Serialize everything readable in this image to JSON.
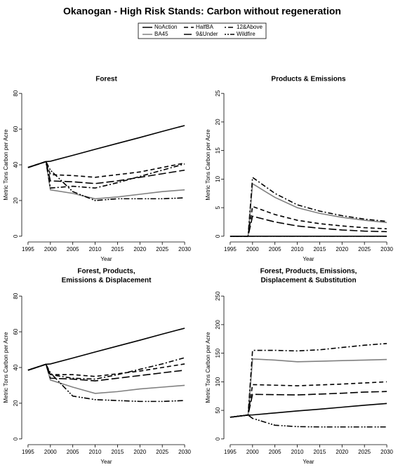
{
  "title": "Okanogan  - High Risk Stands: Carbon without regeneration",
  "chart_data": [
    {
      "type": "line",
      "title": [
        "Forest"
      ],
      "xlabel": "Year",
      "ylabel": "Metric Tons Carbon per Acre",
      "x": [
        1995,
        1999,
        2000,
        2005,
        2010,
        2015,
        2020,
        2025,
        2030
      ],
      "xlim": [
        1993.6,
        2031.4
      ],
      "xticks": [
        1995,
        2000,
        2005,
        2010,
        2015,
        2020,
        2025,
        2030
      ],
      "ylim": [
        -3.2,
        83.2
      ],
      "yticks": [
        0,
        20,
        40,
        60,
        80
      ],
      "series": [
        {
          "name": "NoAction",
          "color": "#000000",
          "linestyle": "solid",
          "values": [
            38.5,
            41.8,
            42,
            45.3,
            48.7,
            52,
            55.3,
            58.7,
            62
          ]
        },
        {
          "name": "BA45",
          "color": "#808080",
          "linestyle": "solid",
          "values": [
            38.5,
            41.8,
            26,
            24,
            21,
            22,
            23.5,
            25,
            26
          ]
        },
        {
          "name": "HalfBA",
          "color": "#000000",
          "linestyle": "dashed",
          "values": [
            38.5,
            41.8,
            34.5,
            34,
            33,
            34.5,
            36,
            38.5,
            41
          ]
        },
        {
          "name": "9&Under",
          "color": "#000000",
          "linestyle": "longdash",
          "values": [
            38.5,
            41.8,
            31,
            30.5,
            29.5,
            31,
            33,
            35,
            37
          ]
        },
        {
          "name": "12&Above",
          "color": "#000000",
          "linestyle": "dotdash",
          "values": [
            38.5,
            41.8,
            27,
            28,
            27,
            30,
            33.5,
            37,
            40.5
          ]
        },
        {
          "name": "Wildfire",
          "color": "#000000",
          "linestyle": "twodash",
          "values": [
            38.5,
            41.8,
            37,
            25,
            20,
            21,
            21,
            21,
            21.5
          ]
        }
      ]
    },
    {
      "type": "line",
      "title": [
        "Products & Emissions"
      ],
      "xlabel": "Year",
      "ylabel": "Metric Tons Carbon per Acre",
      "x": [
        1995,
        1999,
        2000,
        2005,
        2010,
        2015,
        2020,
        2025,
        2030
      ],
      "xlim": [
        1993.6,
        2031.4
      ],
      "xticks": [
        1995,
        2000,
        2005,
        2010,
        2015,
        2020,
        2025,
        2030
      ],
      "ylim": [
        -1,
        26
      ],
      "yticks": [
        0,
        5,
        10,
        15,
        20,
        25
      ],
      "series": [
        {
          "name": "NoAction",
          "color": "#000000",
          "linestyle": "solid",
          "values": [
            0,
            0,
            0,
            0,
            0,
            0,
            0,
            0,
            0
          ]
        },
        {
          "name": "BA45",
          "color": "#808080",
          "linestyle": "solid",
          "values": [
            0,
            0,
            9.2,
            6.8,
            5,
            4,
            3.3,
            2.8,
            2.4
          ]
        },
        {
          "name": "HalfBA",
          "color": "#000000",
          "linestyle": "dashed",
          "values": [
            0,
            0,
            5.2,
            3.8,
            2.8,
            2.2,
            1.8,
            1.5,
            1.3
          ]
        },
        {
          "name": "9&Under",
          "color": "#000000",
          "linestyle": "longdash",
          "values": [
            0,
            0,
            3.5,
            2.5,
            1.8,
            1.4,
            1.1,
            0.9,
            0.8
          ]
        },
        {
          "name": "12&Above",
          "color": "#000000",
          "linestyle": "dotdash",
          "values": [
            0,
            0,
            10.3,
            7.5,
            5.5,
            4.4,
            3.6,
            3,
            2.6
          ]
        },
        {
          "name": "Wildfire",
          "color": "#000000",
          "linestyle": "twodash",
          "values": [
            0,
            0,
            0,
            0,
            0,
            0,
            0,
            0,
            0
          ]
        }
      ]
    },
    {
      "type": "line",
      "title": [
        "Forest, Products,",
        "Emissions & Displacement"
      ],
      "xlabel": "Year",
      "ylabel": "Metric Tons Carbon per Acre",
      "x": [
        1995,
        1999,
        2000,
        2005,
        2010,
        2015,
        2020,
        2025,
        2030
      ],
      "xlim": [
        1993.6,
        2031.4
      ],
      "xticks": [
        1995,
        2000,
        2005,
        2010,
        2015,
        2020,
        2025,
        2030
      ],
      "ylim": [
        -3.2,
        83.2
      ],
      "yticks": [
        0,
        20,
        40,
        60,
        80
      ],
      "series": [
        {
          "name": "NoAction",
          "color": "#000000",
          "linestyle": "solid",
          "values": [
            38.5,
            41.8,
            42,
            45.3,
            48.7,
            52,
            55.3,
            58.7,
            62
          ]
        },
        {
          "name": "BA45",
          "color": "#808080",
          "linestyle": "solid",
          "values": [
            38.5,
            41.8,
            33,
            29,
            25.5,
            26.5,
            28,
            29,
            30
          ]
        },
        {
          "name": "HalfBA",
          "color": "#000000",
          "linestyle": "dashed",
          "values": [
            38.5,
            41.8,
            36,
            36,
            35,
            36.5,
            38,
            40,
            42
          ]
        },
        {
          "name": "9&Under",
          "color": "#000000",
          "linestyle": "longdash",
          "values": [
            38.5,
            41.8,
            34,
            33.5,
            32.5,
            34,
            35.5,
            37,
            38.5
          ]
        },
        {
          "name": "12&Above",
          "color": "#000000",
          "linestyle": "dotdash",
          "values": [
            38.5,
            41.8,
            36,
            34,
            33.5,
            36,
            39,
            42,
            45.5
          ]
        },
        {
          "name": "Wildfire",
          "color": "#000000",
          "linestyle": "twodash",
          "values": [
            38.5,
            41.8,
            37,
            24,
            22,
            21.5,
            21,
            21,
            21.5
          ]
        }
      ]
    },
    {
      "type": "line",
      "title": [
        "Forest, Products, Emissions,",
        "Displacement & Substitution"
      ],
      "xlabel": "Year",
      "ylabel": "Metric Tons Carbon per Acre",
      "x": [
        1995,
        1999,
        2000,
        2005,
        2010,
        2015,
        2020,
        2025,
        2030
      ],
      "xlim": [
        1993.6,
        2031.4
      ],
      "xticks": [
        1995,
        2000,
        2005,
        2010,
        2015,
        2020,
        2025,
        2030
      ],
      "ylim": [
        -10,
        260
      ],
      "yticks": [
        0,
        50,
        100,
        150,
        200,
        250
      ],
      "series": [
        {
          "name": "NoAction",
          "color": "#000000",
          "linestyle": "solid",
          "values": [
            38,
            41.8,
            42,
            45.5,
            49,
            52,
            55.5,
            59,
            62
          ]
        },
        {
          "name": "BA45",
          "color": "#808080",
          "linestyle": "solid",
          "values": [
            38,
            41.8,
            140,
            138,
            135,
            136,
            137,
            138,
            139
          ]
        },
        {
          "name": "HalfBA",
          "color": "#000000",
          "linestyle": "dashed",
          "values": [
            38,
            41.8,
            95,
            94,
            93,
            94.5,
            96,
            98,
            100
          ]
        },
        {
          "name": "9&Under",
          "color": "#000000",
          "linestyle": "longdash",
          "values": [
            38,
            41.8,
            78,
            77.5,
            77,
            78.5,
            80,
            82,
            83
          ]
        },
        {
          "name": "12&Above",
          "color": "#000000",
          "linestyle": "dotdash",
          "values": [
            38,
            41.8,
            155,
            155,
            154,
            156,
            160,
            164,
            167
          ]
        },
        {
          "name": "Wildfire",
          "color": "#000000",
          "linestyle": "twodash",
          "values": [
            38,
            41.8,
            36,
            24,
            21.5,
            21,
            21,
            21,
            21
          ]
        }
      ]
    }
  ]
}
